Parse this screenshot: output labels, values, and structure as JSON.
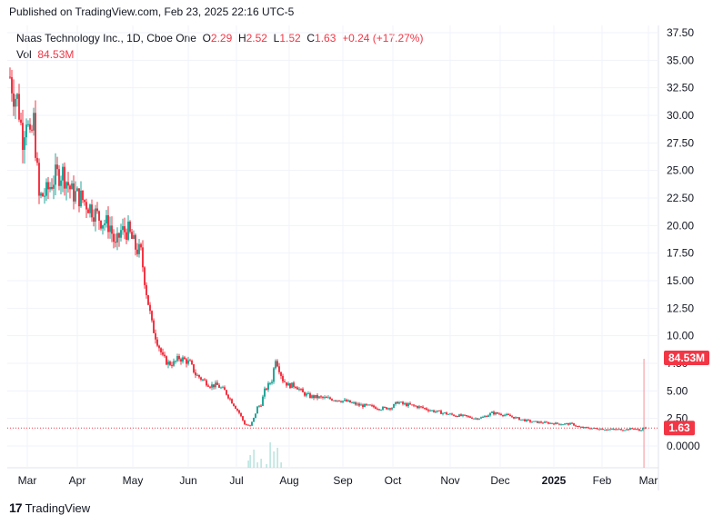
{
  "published": "Published on TradingView.com, Feb 23, 2025 22:16 UTC-5",
  "legend": {
    "symbol": "Naas Technology Inc., 1D, Cboe One",
    "o_label": "O",
    "o_value": "2.29",
    "h_label": "H",
    "h_value": "2.52",
    "l_label": "L",
    "l_value": "1.52",
    "c_label": "C",
    "c_value": "1.63",
    "change": "+0.24 (+17.27%)",
    "vol_label": "Vol",
    "vol_value": "84.53M"
  },
  "brand": {
    "name": "TradingView",
    "logo_icon": "tradingview-logo-icon"
  },
  "colors": {
    "up": "#26a69a",
    "down": "#f23645",
    "grid": "#f0f3fa",
    "axis": "#e0e3eb"
  },
  "chart_data": {
    "type": "candlestick",
    "y_ticks": [
      "37.50",
      "35.00",
      "32.50",
      "30.00",
      "27.50",
      "25.00",
      "22.50",
      "20.00",
      "17.50",
      "15.00",
      "12.50",
      "10.00",
      "7.50",
      "5.00",
      "2.50",
      "0.0000"
    ],
    "x_ticks": [
      "Mar",
      "Apr",
      "May",
      "Jun",
      "Jul",
      "Aug",
      "Sep",
      "Oct",
      "Nov",
      "Dec",
      "2025",
      "Feb",
      "Mar"
    ],
    "ylim": [
      -1,
      38
    ],
    "last_price_label": "1.63",
    "last_volume_label": "84.53M",
    "grid": true,
    "series": [
      {
        "name": "",
        "type": "candles",
        "anchors": [
          [
            0,
            33.5
          ],
          [
            4,
            32.0
          ],
          [
            8,
            31.5
          ],
          [
            14,
            28.0
          ],
          [
            18,
            30.0
          ],
          [
            22,
            27.5
          ],
          [
            26,
            29.5
          ],
          [
            32,
            22.5
          ],
          [
            40,
            23.0
          ],
          [
            50,
            24.5
          ],
          [
            58,
            24.8
          ],
          [
            68,
            23.0
          ],
          [
            78,
            22.5
          ],
          [
            90,
            21.5
          ],
          [
            100,
            20.5
          ],
          [
            110,
            20.0
          ],
          [
            116,
            18.0
          ],
          [
            122,
            19.5
          ],
          [
            130,
            19.5
          ],
          [
            138,
            18.0
          ],
          [
            144,
            17.5
          ],
          [
            150,
            14.0
          ],
          [
            156,
            11.0
          ],
          [
            162,
            9.5
          ],
          [
            168,
            8.0
          ],
          [
            174,
            7.5
          ],
          [
            180,
            7.5
          ],
          [
            186,
            8.0
          ],
          [
            192,
            7.8
          ],
          [
            198,
            7.5
          ],
          [
            204,
            6.5
          ],
          [
            212,
            6.0
          ],
          [
            220,
            5.5
          ],
          [
            228,
            5.5
          ],
          [
            236,
            5.0
          ],
          [
            244,
            4.0
          ],
          [
            252,
            3.0
          ],
          [
            258,
            2.0
          ],
          [
            264,
            1.8
          ],
          [
            268,
            2.5
          ],
          [
            272,
            3.5
          ],
          [
            276,
            3.8
          ],
          [
            280,
            5.0
          ],
          [
            284,
            5.5
          ],
          [
            288,
            6.0
          ],
          [
            292,
            8.0
          ],
          [
            296,
            7.0
          ],
          [
            300,
            6.0
          ],
          [
            306,
            5.5
          ],
          [
            314,
            5.5
          ],
          [
            322,
            4.8
          ],
          [
            330,
            4.5
          ],
          [
            340,
            4.4
          ],
          [
            350,
            4.3
          ],
          [
            360,
            4.2
          ],
          [
            372,
            4.0
          ],
          [
            384,
            3.7
          ],
          [
            396,
            3.6
          ],
          [
            408,
            3.4
          ],
          [
            420,
            3.5
          ],
          [
            426,
            4.0
          ],
          [
            432,
            3.8
          ],
          [
            440,
            3.7
          ],
          [
            452,
            3.5
          ],
          [
            464,
            3.2
          ],
          [
            476,
            3.0
          ],
          [
            488,
            2.8
          ],
          [
            500,
            2.7
          ],
          [
            512,
            2.5
          ],
          [
            520,
            2.6
          ],
          [
            530,
            3.0
          ],
          [
            540,
            2.9
          ],
          [
            550,
            2.7
          ],
          [
            562,
            2.4
          ],
          [
            574,
            2.2
          ],
          [
            590,
            2.1
          ],
          [
            606,
            2.0
          ],
          [
            618,
            2.0
          ],
          [
            626,
            1.7
          ],
          [
            640,
            1.6
          ],
          [
            660,
            1.5
          ],
          [
            678,
            1.5
          ],
          [
            686,
            1.6
          ],
          [
            692,
            1.4
          ],
          [
            696,
            1.6
          ],
          [
            699,
            1.63
          ]
        ]
      },
      {
        "name": "",
        "type": "volume",
        "spikes": [
          [
            262,
            8
          ],
          [
            264,
            14
          ],
          [
            268,
            20
          ],
          [
            272,
            6
          ],
          [
            276,
            10
          ],
          [
            282,
            4
          ],
          [
            286,
            28
          ],
          [
            290,
            18
          ],
          [
            294,
            22
          ],
          [
            298,
            6
          ],
          [
            697,
            120
          ]
        ]
      }
    ]
  }
}
